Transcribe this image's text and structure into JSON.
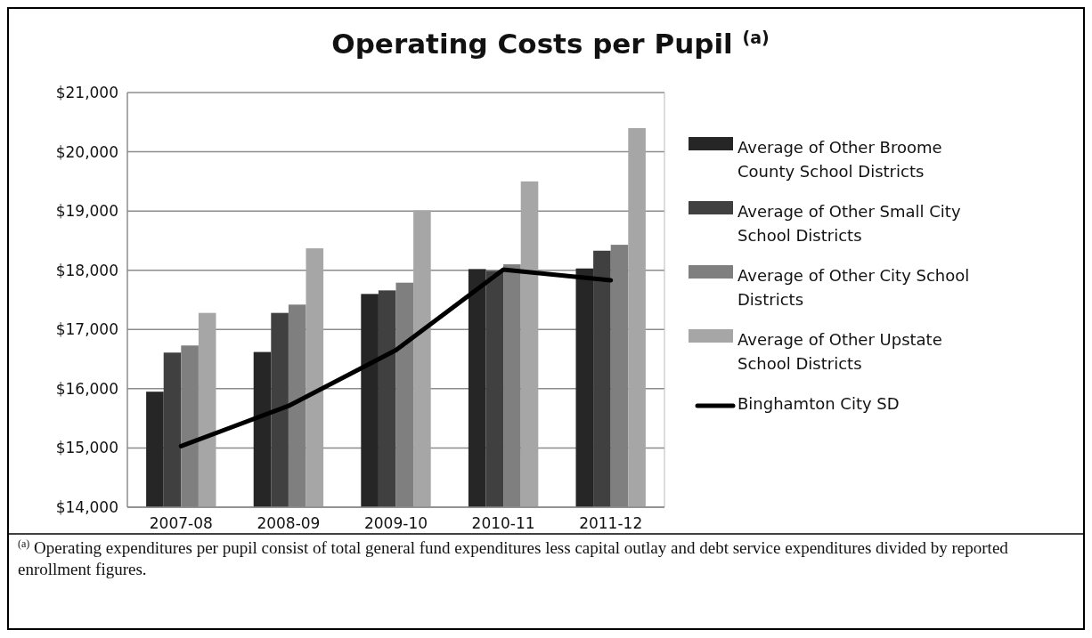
{
  "chart_data": {
    "type": "bar",
    "title": "Operating Costs per Pupil $^{(a)}$",
    "categories": [
      "2007-08",
      "2008-09",
      "2009-10",
      "2010-11",
      "2011-12"
    ],
    "series": [
      {
        "name": "Average of Other Broome County School Districts",
        "color": "#262626",
        "values": [
          15950,
          16620,
          17600,
          18020,
          18030
        ]
      },
      {
        "name": "Average of Other Small City School Districts",
        "color": "#404040",
        "values": [
          16610,
          17280,
          17660,
          17990,
          18330
        ]
      },
      {
        "name": "Average of Other City School Districts",
        "color": "#7f7f7f",
        "values": [
          16730,
          17420,
          17790,
          18100,
          18430
        ]
      },
      {
        "name": "Average of Other Upstate School Districts",
        "color": "#a6a6a6",
        "values": [
          17280,
          18370,
          19010,
          19500,
          20400
        ]
      },
      {
        "name": "Binghamton City SD",
        "color": "#000000",
        "type": "line",
        "values": [
          15030,
          15710,
          16650,
          18010,
          17830
        ]
      }
    ],
    "ylim": [
      14000,
      21000
    ],
    "yticks": [
      {
        "value": 14000,
        "label": "$14,000"
      },
      {
        "value": 15000,
        "label": "$15,000"
      },
      {
        "value": 16000,
        "label": "$16,000"
      },
      {
        "value": 17000,
        "label": "$17,000"
      },
      {
        "value": 18000,
        "label": "$18,000"
      },
      {
        "value": 19000,
        "label": "$19,000"
      },
      {
        "value": 20000,
        "label": "$20,000"
      },
      {
        "value": 21000,
        "label": "$21,000"
      }
    ],
    "grid": "y",
    "legend": "right",
    "marker": "none",
    "annotations": [
      "$^{(a)}$ Operating expenditures per pupil consist of total general fund expenditures less capital outlay and debt service expenditures divided by reported enrollment figures."
    ]
  }
}
